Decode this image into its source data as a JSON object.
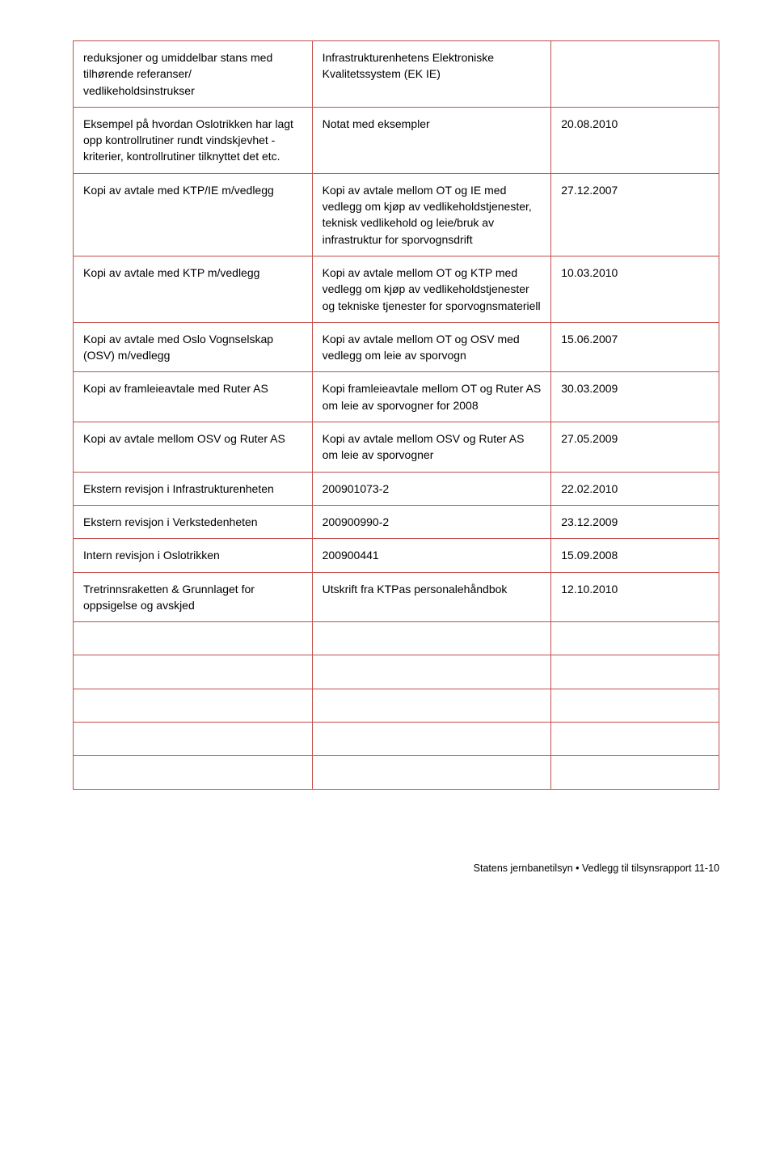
{
  "table": {
    "border_color": "#c0504d",
    "text_color": "#000000",
    "fontsize": 14,
    "column_widths_pct": [
      37,
      37,
      26
    ],
    "rows": [
      {
        "c1": "reduksjoner og umiddelbar stans med tilhørende referanser/ vedlikeholdsinstrukser",
        "c2": "Infrastrukturenhetens Elektroniske Kvalitetssystem (EK IE)",
        "c3": ""
      },
      {
        "c1": "Eksempel på hvordan Oslotrikken har lagt opp kontrollrutiner rundt vindskjevhet - kriterier, kontrollrutiner tilknyttet det etc.",
        "c2": "Notat med eksempler",
        "c3": "20.08.2010"
      },
      {
        "c1": "Kopi av avtale med KTP/IE m/vedlegg",
        "c2": "Kopi av avtale mellom OT og IE med vedlegg om kjøp av vedlikeholdstjenester, teknisk vedlikehold og leie/bruk av infrastruktur for sporvognsdrift",
        "c3": "27.12.2007"
      },
      {
        "c1": "Kopi av avtale med KTP m/vedlegg",
        "c2": "Kopi av avtale mellom OT og KTP med vedlegg om kjøp av vedlikeholdstjenester og tekniske tjenester for sporvognsmateriell",
        "c3": "10.03.2010"
      },
      {
        "c1": "Kopi av avtale med Oslo Vognselskap (OSV) m/vedlegg",
        "c2": "Kopi av avtale mellom OT og OSV med vedlegg om leie av sporvogn",
        "c3": "15.06.2007"
      },
      {
        "c1": "Kopi av framleieavtale med Ruter AS",
        "c2": "Kopi framleieavtale mellom OT og Ruter AS om leie av sporvogner for 2008",
        "c3": "30.03.2009"
      },
      {
        "c1": "Kopi av avtale mellom OSV og Ruter AS",
        "c2": "Kopi av avtale mellom OSV og Ruter AS om leie av sporvogner",
        "c3": "27.05.2009"
      },
      {
        "c1": "Ekstern revisjon i Infrastrukturenheten",
        "c2": "200901073-2",
        "c3": "22.02.2010"
      },
      {
        "c1": "Ekstern revisjon i Verkstedenheten",
        "c2": "200900990-2",
        "c3": "23.12.2009"
      },
      {
        "c1": "Intern revisjon i Oslotrikken",
        "c2": "200900441",
        "c3": "15.09.2008"
      },
      {
        "c1": "Tretrinnsraketten & Grunnlaget for oppsigelse og avskjed",
        "c2": "Utskrift fra KTPas personalehåndbok",
        "c3": "12.10.2010"
      },
      {
        "c1": "",
        "c2": "",
        "c3": ""
      },
      {
        "c1": "",
        "c2": "",
        "c3": ""
      },
      {
        "c1": "",
        "c2": "",
        "c3": ""
      },
      {
        "c1": "",
        "c2": "",
        "c3": ""
      },
      {
        "c1": "",
        "c2": "",
        "c3": ""
      }
    ]
  },
  "footer": "Statens jernbanetilsyn • Vedlegg til tilsynsrapport 11-10"
}
